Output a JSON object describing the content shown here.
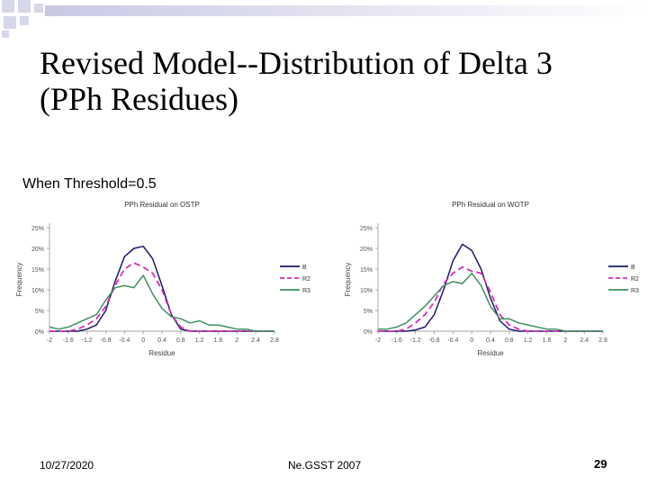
{
  "slide": {
    "title_line1": "Revised Model--Distribution of Delta 3",
    "title_line2": "(PPh Residues)",
    "subtitle": "When Threshold=0.5",
    "footer_date": "10/27/2020",
    "footer_event": "Ne.GSST 2007",
    "page_number": "29"
  },
  "colors": {
    "series1": "#1a1a6e",
    "series2": "#d62fb4",
    "series3": "#3f8f5f",
    "deco_square": "#d7d7ea"
  },
  "chart_data": [
    {
      "type": "line",
      "title": "PPh Residual on OSTP",
      "xlabel": "Residue",
      "ylabel": "Frequency",
      "x": [
        -2,
        -1.8,
        -1.6,
        -1.4,
        -1.2,
        -1,
        -0.8,
        -0.6,
        -0.4,
        -0.2,
        0,
        0.2,
        0.4,
        0.6,
        0.8,
        1,
        1.2,
        1.4,
        1.6,
        1.8,
        2,
        2.2,
        2.4,
        2.6,
        2.8
      ],
      "x_ticks": [
        -2,
        -1.6,
        -1.2,
        -0.8,
        -0.4,
        0,
        0.4,
        0.8,
        1.2,
        1.6,
        2,
        2.4,
        2.8
      ],
      "x_tick_labels": [
        "-2",
        "-1.6",
        "-1.2",
        "-0.8",
        "-0.4",
        "0",
        "0.4",
        "0.8",
        "1.2",
        "1.6",
        "2",
        "2.4",
        "2.8"
      ],
      "y_ticks": [
        0,
        5,
        10,
        15,
        20,
        25
      ],
      "y_tick_labels": [
        "0%",
        "5%",
        "10%",
        "15%",
        "20%",
        "25%"
      ],
      "xlim": [
        -2,
        2.8
      ],
      "ylim": [
        0,
        25
      ],
      "legend_position": "right",
      "series": [
        {
          "name": "B",
          "values": [
            0,
            0,
            0,
            0,
            0.5,
            1.5,
            5,
            12,
            18,
            20,
            20.5,
            17.5,
            11,
            4,
            0.5,
            0,
            0,
            0,
            0,
            0,
            0,
            0,
            0,
            0,
            0
          ]
        },
        {
          "name": "R2",
          "values": [
            0,
            0,
            0,
            0.5,
            1.5,
            3,
            6,
            11,
            15,
            16.5,
            15.5,
            14,
            10,
            4,
            1,
            0,
            0,
            0,
            0,
            0,
            0,
            0,
            0,
            0,
            0
          ]
        },
        {
          "name": "R3",
          "values": [
            1,
            0.5,
            1,
            2,
            3,
            4,
            7.5,
            10.5,
            11,
            10.5,
            13.5,
            9,
            5.5,
            3.5,
            3,
            2,
            2.5,
            1.5,
            1.5,
            1,
            0.5,
            0.5,
            0,
            0,
            0
          ]
        }
      ]
    },
    {
      "type": "line",
      "title": "PPh Residual on WOTP",
      "xlabel": "Residue",
      "ylabel": "Frequency",
      "x": [
        -2,
        -1.8,
        -1.6,
        -1.4,
        -1.2,
        -1,
        -0.8,
        -0.6,
        -0.4,
        -0.2,
        0,
        0.2,
        0.4,
        0.6,
        0.8,
        1,
        1.2,
        1.4,
        1.6,
        1.8,
        2,
        2.2,
        2.4,
        2.6,
        2.8
      ],
      "x_ticks": [
        -2,
        -1.6,
        -1.2,
        -0.8,
        -0.4,
        0,
        0.4,
        0.8,
        1.2,
        1.6,
        2,
        2.4,
        2.8
      ],
      "x_tick_labels": [
        "-2",
        "-1.6",
        "-1.2",
        "-0.8",
        "-0.4",
        "0",
        "0.4",
        "0.8",
        "1.2",
        "1.6",
        "2",
        "2.4",
        "2.8"
      ],
      "y_ticks": [
        0,
        5,
        10,
        15,
        20,
        25
      ],
      "y_tick_labels": [
        "0%",
        "5%",
        "10%",
        "15%",
        "20%",
        "25%"
      ],
      "xlim": [
        -2,
        2.8
      ],
      "ylim": [
        0,
        25
      ],
      "legend_position": "right",
      "series": [
        {
          "name": "B",
          "values": [
            0,
            0,
            0,
            0,
            0.3,
            1,
            4,
            10,
            17,
            21,
            19.5,
            15,
            8,
            2.5,
            0.5,
            0,
            0,
            0,
            0,
            0,
            0,
            0,
            0,
            0,
            0
          ]
        },
        {
          "name": "R2",
          "values": [
            0,
            0,
            0,
            0.5,
            2,
            4,
            7,
            11.5,
            14,
            15.5,
            14.5,
            14,
            9.5,
            4,
            1.5,
            0.5,
            0,
            0,
            0,
            0,
            0,
            0,
            0,
            0,
            0
          ]
        },
        {
          "name": "R3",
          "values": [
            0.5,
            0.5,
            1,
            2,
            4,
            6,
            8.5,
            11,
            12,
            11.5,
            14,
            11,
            6,
            3,
            3,
            2,
            1.5,
            1,
            0.5,
            0.5,
            0,
            0,
            0,
            0,
            0
          ]
        }
      ]
    }
  ]
}
